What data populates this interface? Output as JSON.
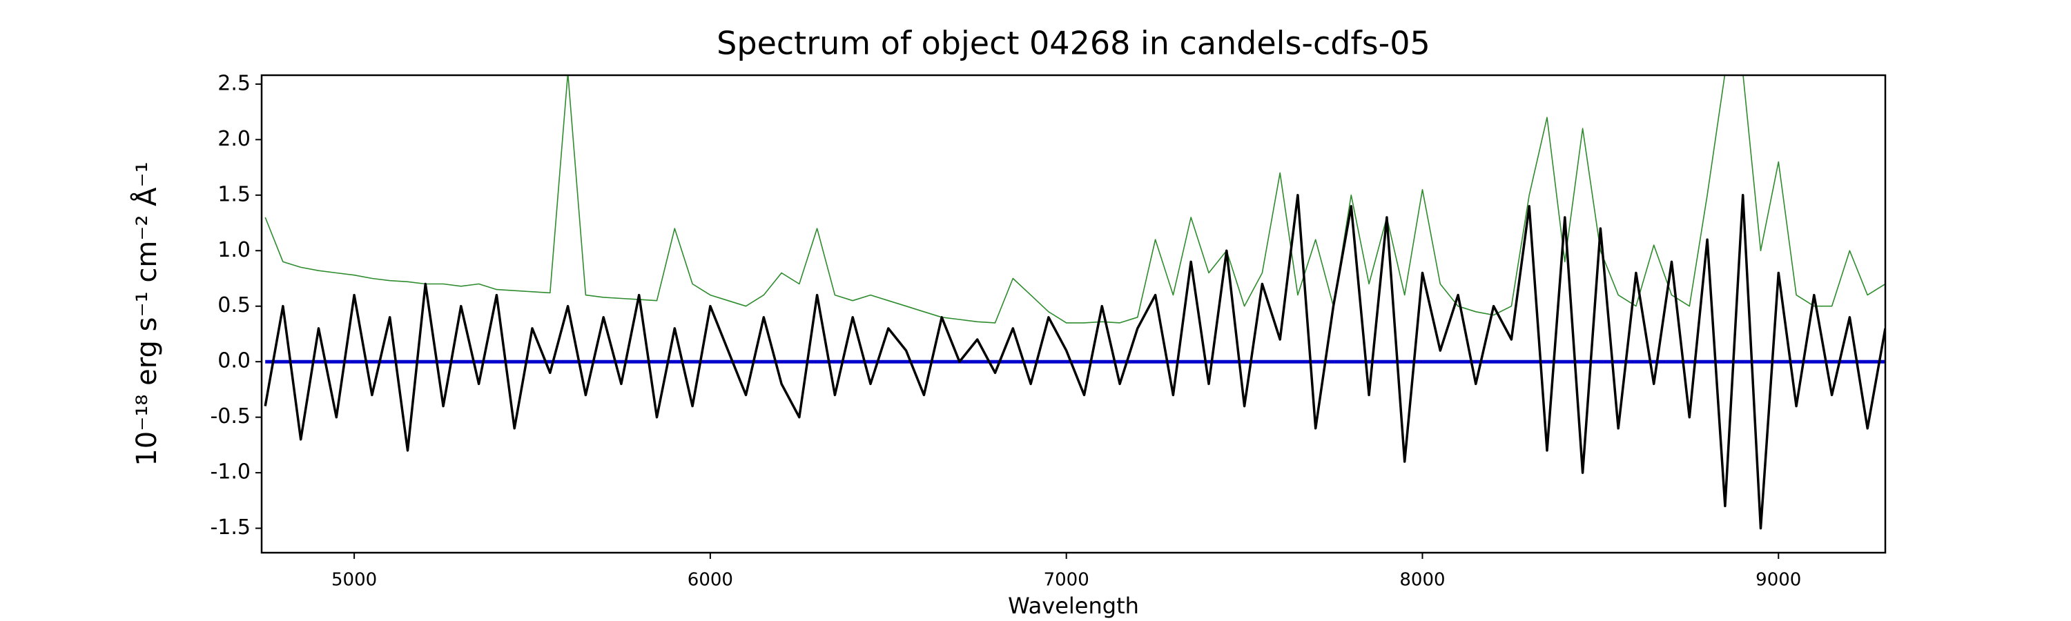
{
  "chart_data": {
    "type": "line",
    "title": "Spectrum of object 04268 in candels-cdfs-05",
    "xlabel": "Wavelength",
    "ylabel": "10⁻¹⁸ erg s⁻¹ cm⁻² Å⁻¹",
    "x": [
      4750,
      4800,
      4850,
      4900,
      4950,
      5000,
      5050,
      5100,
      5150,
      5200,
      5250,
      5300,
      5350,
      5400,
      5450,
      5500,
      5550,
      5600,
      5650,
      5700,
      5750,
      5800,
      5850,
      5900,
      5950,
      6000,
      6050,
      6100,
      6150,
      6200,
      6250,
      6300,
      6350,
      6400,
      6450,
      6500,
      6550,
      6600,
      6650,
      6700,
      6750,
      6800,
      6850,
      6900,
      6950,
      7000,
      7050,
      7100,
      7150,
      7200,
      7250,
      7300,
      7350,
      7400,
      7450,
      7500,
      7550,
      7600,
      7650,
      7700,
      7750,
      7800,
      7850,
      7900,
      7950,
      8000,
      8050,
      8100,
      8150,
      8200,
      8250,
      8300,
      8350,
      8400,
      8450,
      8500,
      8550,
      8600,
      8650,
      8700,
      8750,
      8800,
      8850,
      8900,
      8950,
      9000,
      9050,
      9100,
      9150,
      9200,
      9250,
      9300
    ],
    "series": [
      {
        "color": "#2e8b2e",
        "width": 1.6,
        "values": [
          1.3,
          0.9,
          0.85,
          0.82,
          0.8,
          0.78,
          0.75,
          0.73,
          0.72,
          0.7,
          0.7,
          0.68,
          0.7,
          0.65,
          0.64,
          0.63,
          0.62,
          2.6,
          0.6,
          0.58,
          0.57,
          0.56,
          0.55,
          1.2,
          0.7,
          0.6,
          0.55,
          0.5,
          0.6,
          0.8,
          0.7,
          1.2,
          0.6,
          0.55,
          0.6,
          0.55,
          0.5,
          0.45,
          0.4,
          0.38,
          0.36,
          0.35,
          0.75,
          0.6,
          0.45,
          0.35,
          0.35,
          0.36,
          0.35,
          0.4,
          1.1,
          0.6,
          1.3,
          0.8,
          1.0,
          0.5,
          0.8,
          1.7,
          0.6,
          1.1,
          0.5,
          1.5,
          0.7,
          1.3,
          0.6,
          1.55,
          0.7,
          0.5,
          0.45,
          0.42,
          0.5,
          1.5,
          2.2,
          0.9,
          2.1,
          1.0,
          0.6,
          0.5,
          1.05,
          0.6,
          0.5,
          1.5,
          2.6,
          2.6,
          1.0,
          1.8,
          0.6,
          0.5,
          0.5,
          1.0,
          0.6,
          0.7
        ]
      },
      {
        "color": "#0000cc",
        "width": 5,
        "values": [
          0,
          0,
          0,
          0,
          0,
          0,
          0,
          0,
          0,
          0,
          0,
          0,
          0,
          0,
          0,
          0,
          0,
          0,
          0,
          0,
          0,
          0,
          0,
          0,
          0,
          0,
          0,
          0,
          0,
          0,
          0,
          0,
          0,
          0,
          0,
          0,
          0,
          0,
          0,
          0,
          0,
          0,
          0,
          0,
          0,
          0,
          0,
          0,
          0,
          0,
          0,
          0,
          0,
          0,
          0,
          0,
          0,
          0,
          0,
          0,
          0,
          0,
          0,
          0,
          0,
          0,
          0,
          0,
          0,
          0,
          0,
          0,
          0,
          0,
          0,
          0,
          0,
          0,
          0,
          0,
          0,
          0,
          0,
          0,
          0,
          0,
          0,
          0,
          0,
          0,
          0,
          0
        ]
      },
      {
        "color": "#000000",
        "width": 3.5,
        "values": [
          -0.4,
          0.5,
          -0.7,
          0.3,
          -0.5,
          0.6,
          -0.3,
          0.4,
          -0.8,
          0.7,
          -0.4,
          0.5,
          -0.2,
          0.6,
          -0.6,
          0.3,
          -0.1,
          0.5,
          -0.3,
          0.4,
          -0.2,
          0.6,
          -0.5,
          0.3,
          -0.4,
          0.5,
          0.1,
          -0.3,
          0.4,
          -0.2,
          -0.5,
          0.6,
          -0.3,
          0.4,
          -0.2,
          0.3,
          0.1,
          -0.3,
          0.4,
          0.0,
          0.2,
          -0.1,
          0.3,
          -0.2,
          0.4,
          0.1,
          -0.3,
          0.5,
          -0.2,
          0.3,
          0.6,
          -0.3,
          0.9,
          -0.2,
          1.0,
          -0.4,
          0.7,
          0.2,
          1.5,
          -0.6,
          0.5,
          1.4,
          -0.3,
          1.3,
          -0.9,
          0.8,
          0.1,
          0.6,
          -0.2,
          0.5,
          0.2,
          1.4,
          -0.8,
          1.3,
          -1.0,
          1.2,
          -0.6,
          0.8,
          -0.2,
          0.9,
          -0.5,
          1.1,
          -1.3,
          1.5,
          -1.5,
          0.8,
          -0.4,
          0.6,
          -0.3,
          0.4,
          -0.6,
          0.3
        ]
      }
    ],
    "xlim": [
      4740,
      9300
    ],
    "xticks": [
      5000,
      6000,
      7000,
      8000,
      9000
    ],
    "ylim": [
      -1.72,
      2.58
    ],
    "yticks": [
      -1.5,
      {
        "value": -1.0,
        "label": "-1.0"
      },
      -0.5,
      {
        "value": 0,
        "label": "0.0"
      },
      0.5,
      {
        "value": 1.0,
        "label": "1.0"
      },
      1.5,
      {
        "value": 2.0,
        "label": "2.0"
      },
      2.5
    ]
  }
}
